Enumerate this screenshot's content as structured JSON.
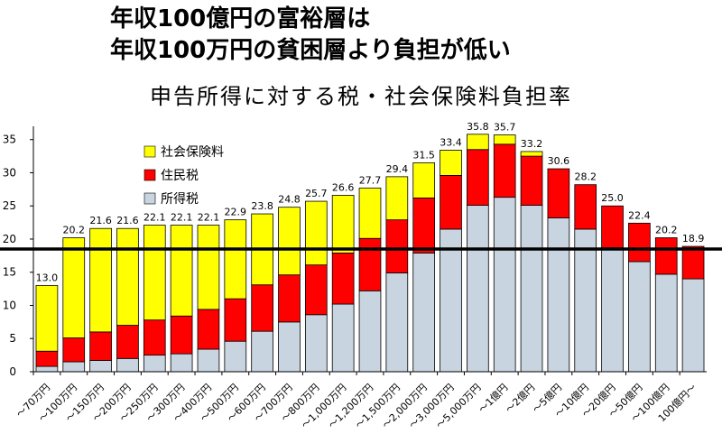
{
  "headline": {
    "line1": "年収100億円の富裕層は",
    "line2": "年収100万円の貧困層より負担が低い"
  },
  "chart_data": {
    "type": "bar",
    "stacked": true,
    "title": "申告所得に対する税・社会保険料負担率",
    "xlabel": "",
    "ylabel": "",
    "ylim": [
      0,
      37
    ],
    "yticks": [
      0,
      5,
      10,
      15,
      20,
      25,
      30,
      35
    ],
    "gridlines": false,
    "legend_position": "top-left",
    "reference_line": 18.5,
    "categories": [
      "～70万円",
      "～100万円",
      "～150万円",
      "～200万円",
      "～250万円",
      "～300万円",
      "～400万円",
      "～500万円",
      "～600万円",
      "～700万円",
      "～800万円",
      "～1,000万円",
      "～1,200万円",
      "～1,500万円",
      "～2,000万円",
      "～3,000万円",
      "～5,000万円",
      "～1億円",
      "～2億円",
      "～5億円",
      "～10億円",
      "～20億円",
      "～50億円",
      "～100億円",
      "100億円～"
    ],
    "totals": [
      13.0,
      20.2,
      21.6,
      21.6,
      22.1,
      22.1,
      22.1,
      22.9,
      23.8,
      24.8,
      25.7,
      26.6,
      27.7,
      29.4,
      31.5,
      33.4,
      35.8,
      35.7,
      33.2,
      30.6,
      28.2,
      25.0,
      22.4,
      20.2,
      18.9
    ],
    "total_labels": [
      "13.0",
      "20.2",
      "21.6",
      "21.6",
      "22.1",
      "22.1",
      "22.1",
      "22.9",
      "23.8",
      "24.8",
      "25.7",
      "26.6",
      "27.7",
      "29.4",
      "31.5",
      "33.4",
      "35.8",
      "35.7",
      "33.2",
      "30.6",
      "28.2",
      "25.0",
      "22.4",
      "20.2",
      "18.9"
    ],
    "series": [
      {
        "name": "所得税",
        "color": "#c8d4e0",
        "values": [
          0.8,
          1.5,
          1.7,
          2.0,
          2.5,
          2.7,
          3.4,
          4.6,
          6.1,
          7.5,
          8.6,
          10.2,
          12.2,
          14.9,
          17.9,
          21.5,
          25.1,
          26.3,
          25.1,
          23.2,
          21.5,
          18.7,
          16.6,
          14.7,
          14.0
        ]
      },
      {
        "name": "住民税",
        "color": "#ff0000",
        "values": [
          2.3,
          3.6,
          4.3,
          5.0,
          5.3,
          5.7,
          6.0,
          6.4,
          7.0,
          7.1,
          7.5,
          7.7,
          7.9,
          8.0,
          8.3,
          8.1,
          8.4,
          8.0,
          7.4,
          7.4,
          6.7,
          6.3,
          5.8,
          5.5,
          4.9
        ]
      },
      {
        "name": "社会保険料",
        "color": "#ffff00",
        "values": [
          9.9,
          15.1,
          15.6,
          14.6,
          14.3,
          13.7,
          12.7,
          11.9,
          10.7,
          10.2,
          9.6,
          8.7,
          7.6,
          6.5,
          5.3,
          3.8,
          2.3,
          1.4,
          0.7,
          0,
          0,
          0,
          0,
          0,
          0
        ]
      }
    ],
    "legend_order": [
      "社会保険料",
      "住民税",
      "所得税"
    ]
  }
}
